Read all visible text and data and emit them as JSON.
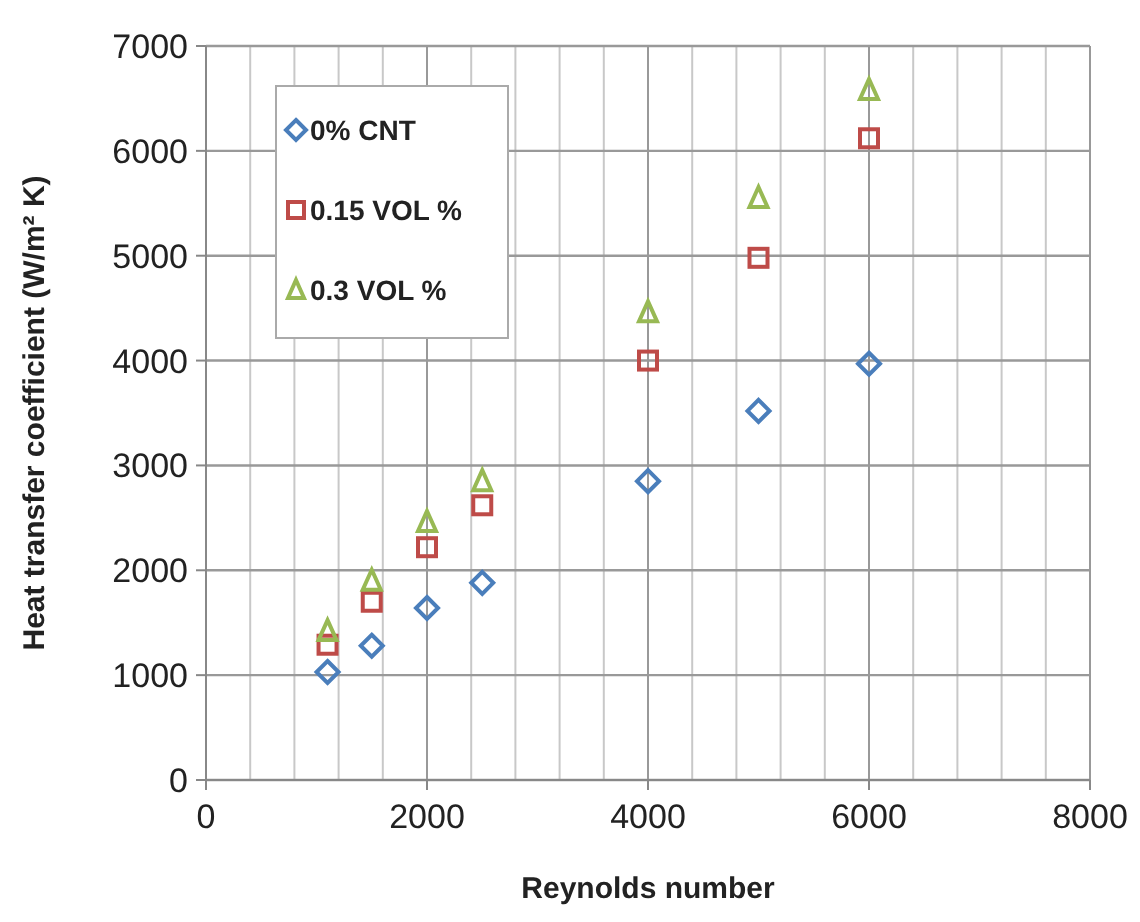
{
  "chart_data": {
    "type": "scatter",
    "xlabel": "Reynolds number",
    "ylabel": "Heat transfer coefficient (W/m² K)",
    "xlim": [
      0,
      8000
    ],
    "xticks": [
      0,
      2000,
      4000,
      6000,
      8000
    ],
    "ylim": [
      0,
      7000
    ],
    "yticks": [
      0,
      1000,
      2000,
      3000,
      4000,
      5000,
      6000,
      7000
    ],
    "grid": true,
    "legend": "top left",
    "series": [
      {
        "name": "0% CNT",
        "color": "#4a7ebb",
        "marker": "diamond",
        "x": [
          1100,
          1500,
          2000,
          2500,
          4000,
          5000,
          6000
        ],
        "values": [
          1030,
          1280,
          1640,
          1880,
          2850,
          3520,
          3970
        ]
      },
      {
        "name": "0.15 VOL %",
        "color": "#be4b48",
        "marker": "square",
        "x": [
          1100,
          1500,
          2000,
          2500,
          4000,
          5000,
          6000
        ],
        "values": [
          1290,
          1700,
          2220,
          2620,
          4000,
          4980,
          6120
        ]
      },
      {
        "name": "0.3 VOL %",
        "color": "#98b954",
        "marker": "triangle",
        "x": [
          1100,
          1500,
          2000,
          2500,
          4000,
          5000,
          6000
        ],
        "values": [
          1420,
          1900,
          2460,
          2850,
          4460,
          5550,
          6580
        ]
      }
    ]
  }
}
